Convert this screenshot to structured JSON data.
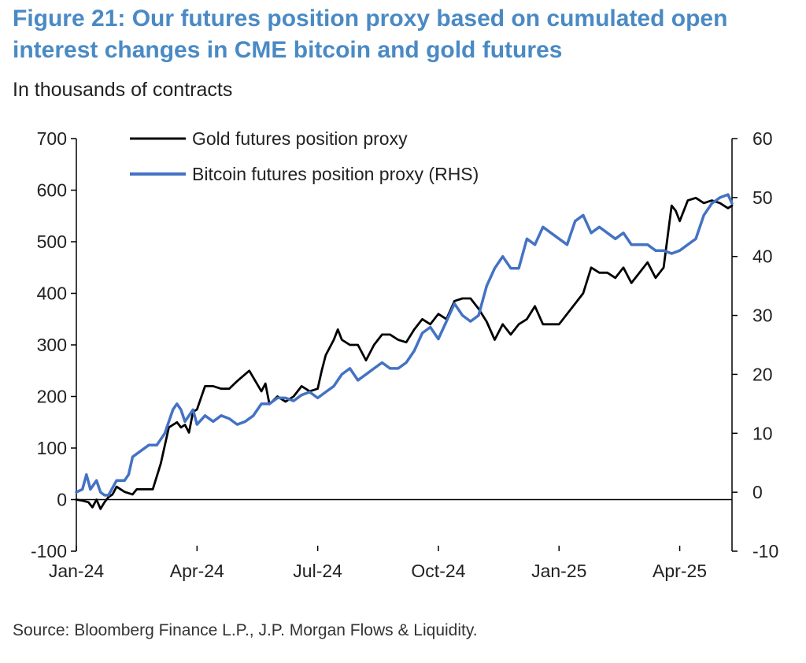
{
  "title": "Figure 21: Our futures position proxy based on cumulated open interest changes in CME bitcoin and gold futures",
  "subtitle": "In thousands of contracts",
  "source": "Source: Bloomberg Finance L.P., J.P. Morgan Flows & Liquidity.",
  "colors": {
    "gold": "#000000",
    "bitcoin": "#4472c4",
    "title": "#4a8ac4"
  },
  "chart_data": {
    "type": "line",
    "title": "Figure 21: Our futures position proxy based on cumulated open interest changes in CME bitcoin and gold futures",
    "ylabel": "In thousands of contracts",
    "x_unit": "months since Jan-24",
    "xlim": [
      0,
      16.3
    ],
    "x_ticks": [
      0,
      3,
      6,
      9,
      12,
      15
    ],
    "x_tick_labels": [
      "Jan-24",
      "Apr-24",
      "Jul-24",
      "Oct-24",
      "Jan-25",
      "Apr-25"
    ],
    "y_left": {
      "lim": [
        -100,
        700
      ],
      "ticks": [
        -100,
        0,
        100,
        200,
        300,
        400,
        500,
        600,
        700
      ]
    },
    "y_right": {
      "lim": [
        -10,
        60
      ],
      "ticks": [
        -10,
        0,
        10,
        20,
        30,
        40,
        50,
        60
      ]
    },
    "legend": {
      "position": "top-left",
      "entries": [
        "Gold futures position proxy",
        "Bitcoin futures position proxy (RHS)"
      ]
    },
    "series": [
      {
        "name": "Gold futures position proxy",
        "axis": "left",
        "color": "#000000",
        "x": [
          0,
          0.15,
          0.3,
          0.4,
          0.5,
          0.6,
          0.7,
          0.8,
          0.9,
          1.0,
          1.2,
          1.4,
          1.5,
          1.7,
          1.9,
          2.1,
          2.3,
          2.5,
          2.6,
          2.7,
          2.8,
          2.9,
          3.0,
          3.2,
          3.4,
          3.6,
          3.8,
          4.0,
          4.3,
          4.6,
          4.7,
          4.8,
          5.0,
          5.2,
          5.4,
          5.6,
          5.8,
          6.0,
          6.1,
          6.2,
          6.4,
          6.5,
          6.6,
          6.8,
          7.0,
          7.2,
          7.4,
          7.6,
          7.8,
          8.0,
          8.2,
          8.4,
          8.6,
          8.8,
          9.0,
          9.2,
          9.4,
          9.6,
          9.8,
          10.0,
          10.2,
          10.4,
          10.6,
          10.8,
          11.0,
          11.2,
          11.4,
          11.6,
          11.8,
          12.0,
          12.2,
          12.4,
          12.6,
          12.8,
          13.0,
          13.2,
          13.4,
          13.6,
          13.8,
          14.0,
          14.2,
          14.4,
          14.6,
          14.8,
          14.9,
          15.0,
          15.2,
          15.4,
          15.6,
          15.8,
          16.0,
          16.2,
          16.3
        ],
        "values": [
          0,
          -2,
          -5,
          -15,
          0,
          -18,
          -5,
          5,
          10,
          25,
          15,
          10,
          20,
          20,
          20,
          70,
          140,
          150,
          140,
          145,
          130,
          170,
          175,
          220,
          220,
          215,
          215,
          230,
          250,
          210,
          225,
          185,
          200,
          190,
          200,
          220,
          210,
          215,
          250,
          280,
          310,
          330,
          310,
          300,
          300,
          270,
          300,
          320,
          320,
          310,
          305,
          330,
          350,
          340,
          360,
          350,
          385,
          390,
          390,
          370,
          345,
          310,
          340,
          320,
          340,
          350,
          375,
          340,
          340,
          340,
          360,
          380,
          400,
          450,
          440,
          440,
          430,
          450,
          420,
          440,
          460,
          430,
          450,
          570,
          560,
          540,
          580,
          585,
          575,
          580,
          575,
          565,
          570
        ]
      },
      {
        "name": "Bitcoin futures position proxy (RHS)",
        "axis": "right",
        "color": "#4472c4",
        "x": [
          0,
          0.15,
          0.25,
          0.35,
          0.5,
          0.6,
          0.7,
          0.8,
          1.0,
          1.2,
          1.3,
          1.4,
          1.6,
          1.8,
          2.0,
          2.2,
          2.4,
          2.5,
          2.6,
          2.7,
          2.8,
          2.9,
          3.0,
          3.2,
          3.4,
          3.6,
          3.8,
          4.0,
          4.2,
          4.4,
          4.6,
          4.8,
          5.0,
          5.2,
          5.4,
          5.6,
          5.8,
          6.0,
          6.2,
          6.4,
          6.6,
          6.8,
          7.0,
          7.2,
          7.4,
          7.6,
          7.8,
          8.0,
          8.2,
          8.4,
          8.6,
          8.8,
          9.0,
          9.2,
          9.4,
          9.6,
          9.8,
          10.0,
          10.2,
          10.4,
          10.6,
          10.8,
          11.0,
          11.2,
          11.4,
          11.6,
          11.8,
          12.0,
          12.2,
          12.4,
          12.6,
          12.8,
          13.0,
          13.2,
          13.4,
          13.6,
          13.8,
          14.0,
          14.2,
          14.4,
          14.6,
          14.8,
          15.0,
          15.2,
          15.4,
          15.6,
          15.8,
          16.0,
          16.2,
          16.3
        ],
        "values": [
          0,
          0.5,
          3,
          0.5,
          2,
          0,
          -0.5,
          -0.5,
          2,
          2,
          3,
          6,
          7,
          8,
          8,
          10,
          14,
          15,
          14,
          12,
          13,
          14,
          11.5,
          13,
          12,
          13,
          12.5,
          11.5,
          12,
          13,
          15,
          15,
          16,
          16,
          15.5,
          16.5,
          17,
          16,
          17,
          18,
          20,
          21,
          19,
          20,
          21,
          22,
          21,
          21,
          22,
          24,
          27,
          28,
          26,
          29,
          32,
          30,
          29,
          30,
          35,
          38,
          40,
          38,
          38,
          43,
          42,
          45,
          44,
          43,
          42,
          46,
          47,
          44,
          45,
          44,
          43,
          44,
          42,
          42,
          42,
          41,
          41,
          40.5,
          41,
          42,
          43,
          47,
          49,
          50,
          50.5,
          49
        ]
      }
    ]
  }
}
